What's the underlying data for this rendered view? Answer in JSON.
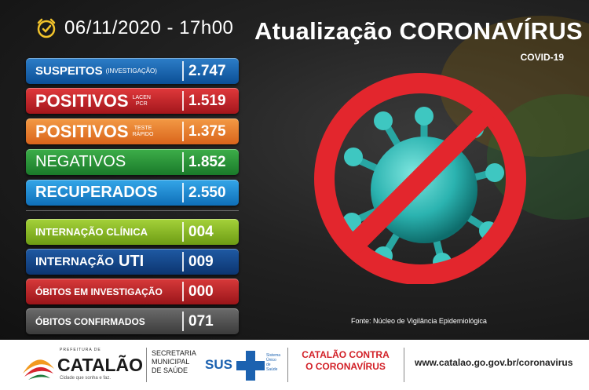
{
  "header": {
    "datetime": "06/11/2020 - 17h00",
    "title": "Atualização CORONAVÍRUS",
    "subtitle": "COVID-19"
  },
  "stats": {
    "suspeitos": {
      "label": "SUSPEITOS",
      "note": "(INVESTIGAÇÃO)",
      "value": "2.747"
    },
    "positivos_lacen": {
      "label": "POSITIVOS",
      "note1": "LACEN",
      "note2": "PCR",
      "value": "1.519"
    },
    "positivos_teste": {
      "label": "POSITIVOS",
      "note1": "TESTE",
      "note2": "RÁPIDO",
      "value": "1.375"
    },
    "negativos": {
      "label": "NEGATIVOS",
      "value": "1.852"
    },
    "recuperados": {
      "label": "RECUPERADOS",
      "value": "2.550"
    },
    "internacao_clinica": {
      "label": "INTERNAÇÃO CLÍNICA",
      "value": "004"
    },
    "internacao_uti": {
      "label": "INTERNAÇÃO",
      "label2": "UTI",
      "value": "009"
    },
    "obitos_investigacao": {
      "label": "ÓBITOS EM INVESTIGAÇÃO",
      "value": "000"
    },
    "obitos_confirmados": {
      "label": "ÓBITOS CONFIRMADOS",
      "value": "071"
    }
  },
  "source": "Fonte: Núcleo de Vigilância Epidemiológica",
  "footer": {
    "logo_top": "PREFEITURA DE",
    "logo_name": "CATALÃO",
    "logo_sub": "Cidade que sonha e faz.",
    "secretaria_1": "SECRETARIA",
    "secretaria_2": "MUNICIPAL",
    "secretaria_3": "DE SAÚDE",
    "sus": "SUS",
    "sus_small_1": "Sistema",
    "sus_small_2": "Único",
    "sus_small_3": "de",
    "sus_small_4": "Saúde",
    "campaign_1": "CATALÃO CONTRA",
    "campaign_2": "O CORONAVÍRUS",
    "website": "www.catalao.go.gov.br/coronavirus"
  },
  "colors": {
    "prohibition_red": "#e3262d",
    "virus_teal": "#2bb3b0"
  }
}
